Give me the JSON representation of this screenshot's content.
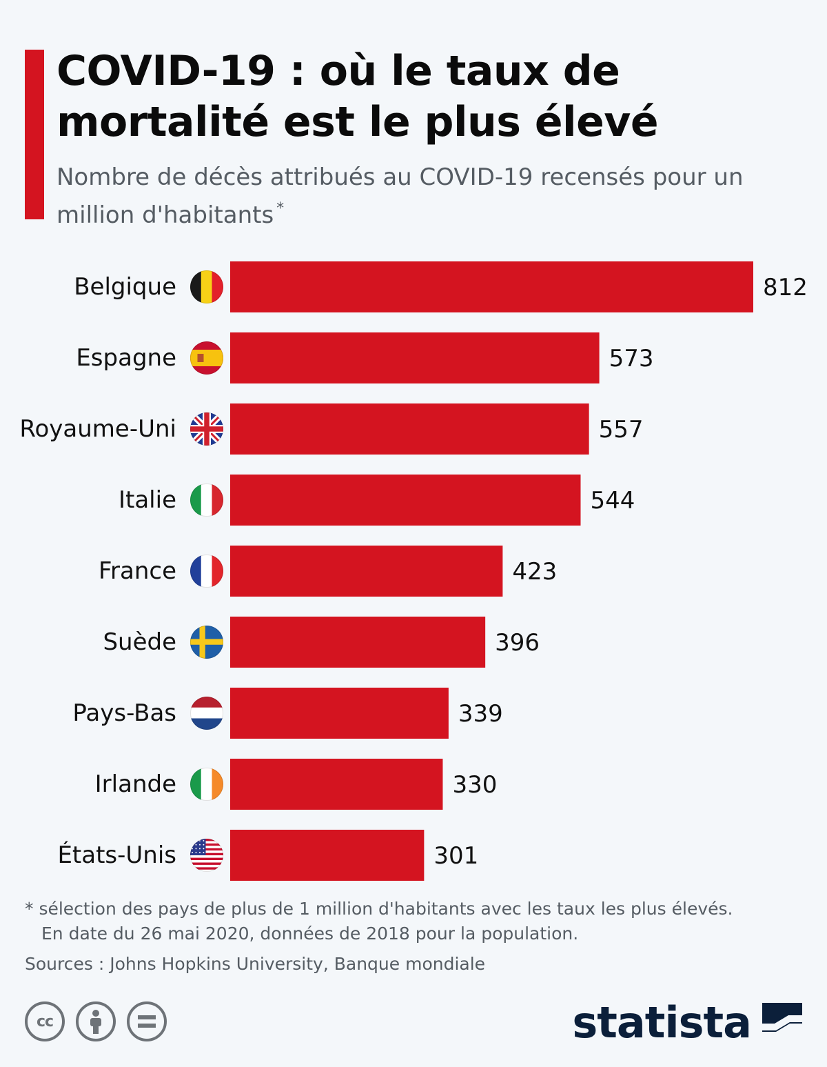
{
  "header": {
    "title": "COVID-19 : où le taux de mortalité est le plus élevé",
    "subtitle": "Nombre de décès attribués au COVID-19 recensés pour un million d'habitants",
    "subtitle_marker": "*"
  },
  "chart_data": {
    "type": "bar",
    "orientation": "horizontal",
    "categories": [
      "Belgique",
      "Espagne",
      "Royaume-Uni",
      "Italie",
      "France",
      "Suède",
      "Pays-Bas",
      "Irlande",
      "États-Unis"
    ],
    "values": [
      812,
      573,
      557,
      544,
      423,
      396,
      339,
      330,
      301
    ],
    "flag_icons": [
      "belgium-flag-icon",
      "spain-flag-icon",
      "uk-flag-icon",
      "italy-flag-icon",
      "france-flag-icon",
      "sweden-flag-icon",
      "netherlands-flag-icon",
      "ireland-flag-icon",
      "usa-flag-icon"
    ],
    "bar_color": "#d41420",
    "xlim": [
      0,
      812
    ],
    "grid": false,
    "data_labels": true
  },
  "footer": {
    "note_line1": "* sélection des pays de plus de 1 million d'habitants avec les taux les plus élevés.",
    "note_line2": "En date du 26 mai 2020, données de 2018 pour la population.",
    "sources": "Sources : Johns Hopkins University, Banque mondiale",
    "license_icons": [
      "cc-icon",
      "attribution-icon",
      "no-derivatives-icon"
    ],
    "cc_label": "cc",
    "brand": "statista"
  },
  "colors": {
    "accent": "#d41420",
    "background": "#f4f7fa",
    "text_muted": "#555c63",
    "brand_navy": "#0b1f3a"
  }
}
